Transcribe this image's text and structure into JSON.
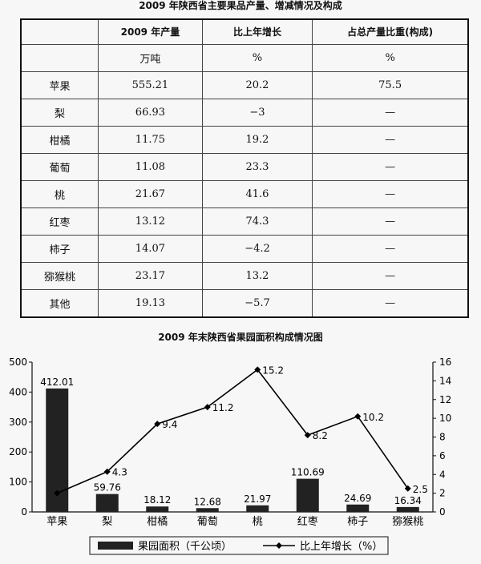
{
  "table": {
    "title": "2009 年陕西省主要果品产量、增减情况及构成",
    "headers": [
      "",
      "2009 年产量",
      "比上年增长",
      "占总产量比重(构成)"
    ],
    "units": [
      "",
      "万吨",
      "%",
      "%"
    ],
    "rows": [
      {
        "name": "苹果",
        "output": "555.21",
        "growth": "20.2",
        "share": "75.5"
      },
      {
        "name": "梨",
        "output": "66.93",
        "growth": "−3",
        "share": "—"
      },
      {
        "name": "柑橘",
        "output": "11.75",
        "growth": "19.2",
        "share": "—"
      },
      {
        "name": "葡萄",
        "output": "11.08",
        "growth": "23.3",
        "share": "—"
      },
      {
        "name": "桃",
        "output": "21.67",
        "growth": "41.6",
        "share": "—"
      },
      {
        "name": "红枣",
        "output": "13.12",
        "growth": "74.3",
        "share": "—"
      },
      {
        "name": "柿子",
        "output": "14.07",
        "growth": "−4.2",
        "share": "—"
      },
      {
        "name": "猕猴桃",
        "output": "23.17",
        "growth": "13.2",
        "share": "—"
      },
      {
        "name": "其他",
        "output": "19.13",
        "growth": "−5.7",
        "share": "—"
      }
    ]
  },
  "chart_data": {
    "type": "bar",
    "title": "2009 年末陕西省果园面积构成情况图",
    "categories": [
      "苹果",
      "梨",
      "柑橘",
      "葡萄",
      "桃",
      "红枣",
      "柿子",
      "猕猴桃"
    ],
    "series": [
      {
        "name": "果园面积（千公顷）",
        "type": "bar",
        "axis": "left",
        "values": [
          412.01,
          59.76,
          18.12,
          12.68,
          21.97,
          110.69,
          24.69,
          16.34
        ],
        "labels": [
          "412.01",
          "59.76",
          "18.12",
          "12.68",
          "21.97",
          "110.69",
          "24.69",
          "16.34"
        ],
        "color": "#222222"
      },
      {
        "name": "比上年增长（%）",
        "type": "line",
        "axis": "right",
        "values": [
          2.0,
          4.3,
          9.4,
          11.2,
          15.2,
          8.2,
          10.2,
          2.5
        ],
        "labels": [
          "",
          "4.3",
          "9.4",
          "11.2",
          "15.2",
          "8.2",
          "10.2",
          "2.5"
        ],
        "color": "#000000"
      }
    ],
    "y_left": {
      "min": 0,
      "max": 500,
      "ticks": [
        "0",
        "100",
        "200",
        "300",
        "400",
        "500"
      ]
    },
    "y_right": {
      "min": 0,
      "max": 16,
      "ticks": [
        "0",
        "2",
        "4",
        "6",
        "8",
        "10",
        "12",
        "14",
        "16"
      ]
    },
    "legend_position": "bottom"
  }
}
